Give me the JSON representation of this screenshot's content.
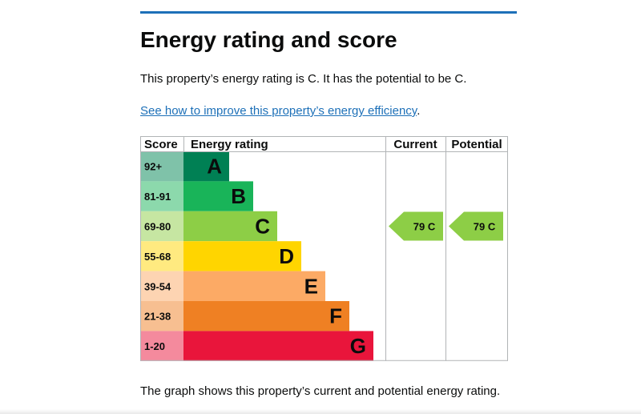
{
  "page": {
    "title": "Energy rating and score",
    "summary": "This property’s energy rating is C. It has the potential to be C.",
    "link_text": "See how to improve this property’s energy efficiency",
    "link_suffix": ".",
    "footer": "The graph shows this property’s current and potential energy rating."
  },
  "chart_data": {
    "type": "bar",
    "title": "Energy rating and score",
    "columns": {
      "score": "Score",
      "rating": "Energy rating",
      "current": "Current",
      "potential": "Potential"
    },
    "bands": [
      {
        "letter": "A",
        "range": "92+",
        "color": "#008054",
        "label_bg": "#7fc2a9",
        "order": 1
      },
      {
        "letter": "B",
        "range": "81-91",
        "color": "#19b459",
        "label_bg": "#8cd9ac",
        "order": 2
      },
      {
        "letter": "C",
        "range": "69-80",
        "color": "#8dce46",
        "label_bg": "#c6e6a2",
        "order": 3
      },
      {
        "letter": "D",
        "range": "55-68",
        "color": "#ffd500",
        "label_bg": "#ffea80",
        "order": 4
      },
      {
        "letter": "E",
        "range": "39-54",
        "color": "#fcaa65",
        "label_bg": "#fdd4b2",
        "order": 5
      },
      {
        "letter": "F",
        "range": "21-38",
        "color": "#ef8023",
        "label_bg": "#f7bf91",
        "order": 6
      },
      {
        "letter": "G",
        "range": "1-20",
        "color": "#e9153b",
        "label_bg": "#f48a9d",
        "order": 7
      }
    ],
    "current": {
      "score": 79,
      "band": "C",
      "label": "79 C"
    },
    "potential": {
      "score": 79,
      "band": "C",
      "label": "79 C"
    }
  }
}
